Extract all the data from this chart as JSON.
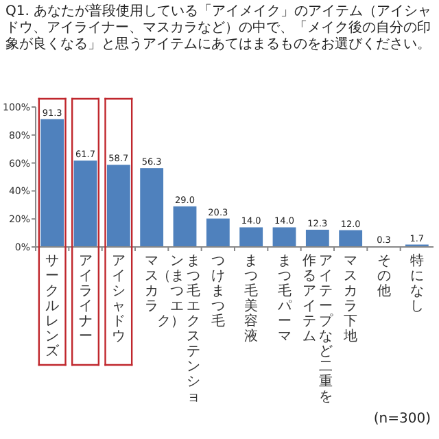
{
  "chart_data": {
    "type": "bar",
    "title": "Q1. あなたが普段使用している「アイメイク」のアイテム（アイシャドウ、アイライナー、マスカラなど）の中で、「メイク後の自分の印象が良くなる」と思うアイテムにあてはまるものをお選びください。",
    "categories": [
      "サークルレンズ",
      "アイライナー",
      "アイシャドウ",
      "マスカラ",
      "まつ毛エクステンション（まつエク）",
      "つけまつ毛",
      "まつ毛美容液",
      "まつ毛パーマ",
      "アイテープなど二重を作るアイテム",
      "マスカラ下地",
      "その他",
      "特になし"
    ],
    "values": [
      91.3,
      61.7,
      58.7,
      56.3,
      29.0,
      20.3,
      14.0,
      14.0,
      12.3,
      12.0,
      0.3,
      1.7
    ],
    "color": "#4f81bd",
    "ylim": [
      0,
      100
    ],
    "yticks": [
      {
        "value": 0,
        "label": "0%"
      },
      {
        "value": 20,
        "label": "20%"
      },
      {
        "value": 40,
        "label": "40%"
      },
      {
        "value": 60,
        "label": "60%"
      },
      {
        "value": 80,
        "label": "80%"
      },
      {
        "value": 100,
        "label": "100%"
      }
    ],
    "value_labels": [
      "91.3",
      "61.7",
      "58.7",
      "56.3",
      "29.0",
      "20.3",
      "14.0",
      "14.0",
      "12.3",
      "12.0",
      "0.3",
      "1.7"
    ],
    "annotations": [
      "(n=300)"
    ]
  }
}
